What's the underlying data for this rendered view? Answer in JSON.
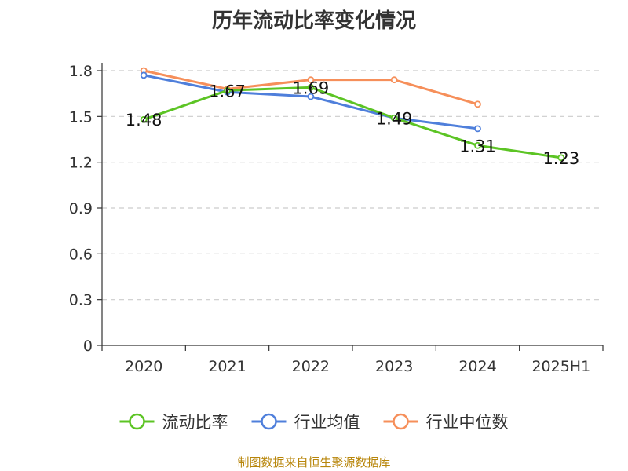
{
  "chart_data": {
    "type": "line",
    "title": "历年流动比率变化情况",
    "categories": [
      "2020",
      "2021",
      "2022",
      "2023",
      "2024",
      "2025H1"
    ],
    "ylim": [
      0,
      1.8
    ],
    "yticks": [
      "0",
      "0.3",
      "0.6",
      "0.9",
      "1.2",
      "1.5",
      "1.8"
    ],
    "grid": "horizontal-dashed",
    "legend_position": "bottom",
    "series": [
      {
        "name": "流动比率",
        "color": "#5cc424",
        "values": [
          1.48,
          1.67,
          1.69,
          1.49,
          1.31,
          1.23
        ],
        "labels": [
          "1.48",
          "1.67",
          "1.69",
          "1.49",
          "1.31",
          "1.23"
        ]
      },
      {
        "name": "行业均值",
        "color": "#4f7fdb",
        "values": [
          1.77,
          1.66,
          1.63,
          1.49,
          1.42,
          null
        ]
      },
      {
        "name": "行业中位数",
        "color": "#f68f5a",
        "values": [
          1.8,
          1.68,
          1.74,
          1.74,
          1.58,
          null
        ]
      }
    ]
  },
  "footer": {
    "source": "制图数据来自恒生聚源数据库"
  }
}
